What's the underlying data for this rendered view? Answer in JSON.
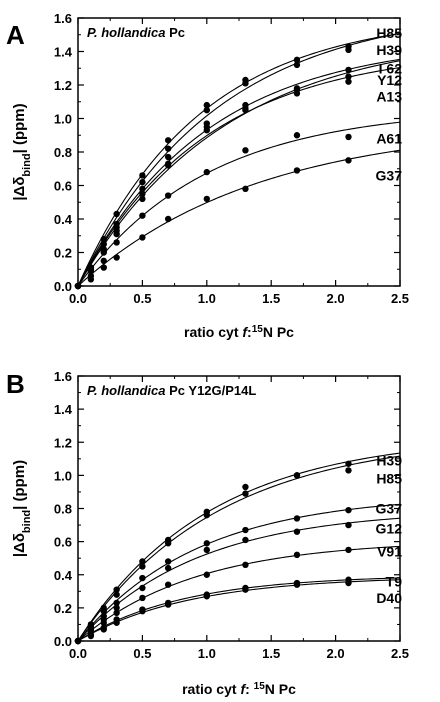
{
  "chart_data": [
    {
      "type": "scatter",
      "panel_letter": "A",
      "title_italic": "P. hollandica",
      "title_rest": " Pc",
      "xlabel_pre": "ratio cyt ",
      "xlabel_f": "f",
      "xlabel_colon": ":",
      "xlabel_sup": "15",
      "xlabel_post": "N Pc",
      "ylabel_pre": "|Δδ",
      "ylabel_sub": "bind",
      "ylabel_post": "| (ppm)",
      "xlim": [
        0.0,
        2.5
      ],
      "ylim": [
        0.0,
        1.6
      ],
      "xticks": [
        "0.0",
        "0.5",
        "1.0",
        "1.5",
        "2.0",
        "2.5"
      ],
      "yticks": [
        "0.0",
        "0.2",
        "0.4",
        "0.6",
        "0.8",
        "1.0",
        "1.2",
        "1.4",
        "1.6"
      ],
      "grid": false,
      "x": [
        0.1,
        0.2,
        0.3,
        0.5,
        0.7,
        1.0,
        1.3,
        1.7,
        2.1
      ],
      "series": [
        {
          "name": "H85",
          "label_y": 1.51,
          "values": [
            0.11,
            0.28,
            0.43,
            0.66,
            0.87,
            1.08,
            1.23,
            1.35,
            1.43
          ]
        },
        {
          "name": "H39",
          "label_y": 1.41,
          "values": [
            0.1,
            0.25,
            0.37,
            0.62,
            0.82,
            1.05,
            1.21,
            1.32,
            1.41
          ]
        },
        {
          "name": "I 62",
          "label_y": 1.3,
          "values": [
            0.1,
            0.22,
            0.35,
            0.58,
            0.77,
            0.97,
            1.08,
            1.18,
            1.29
          ]
        },
        {
          "name": "Y12",
          "label_y": 1.23,
          "values": [
            0.09,
            0.21,
            0.33,
            0.55,
            0.73,
            0.95,
            1.06,
            1.15,
            1.22
          ]
        },
        {
          "name": "A13",
          "label_y": 1.13,
          "values": [
            0.09,
            0.2,
            0.31,
            0.52,
            0.72,
            0.93,
            1.05,
            1.17,
            1.25
          ]
        },
        {
          "name": "A61",
          "label_y": 0.88,
          "values": [
            0.06,
            0.15,
            0.26,
            0.42,
            0.54,
            0.68,
            0.81,
            0.9,
            0.89
          ]
        },
        {
          "name": "G37",
          "label_y": 0.66,
          "values": [
            0.04,
            0.11,
            0.17,
            0.29,
            0.4,
            0.52,
            0.58,
            0.69,
            0.75
          ]
        }
      ]
    },
    {
      "type": "scatter",
      "panel_letter": "B",
      "title_italic": "P. hollandica",
      "title_rest": " Pc Y12G/P14L",
      "xlabel_pre": "ratio cyt ",
      "xlabel_f": "f",
      "xlabel_colon": ": ",
      "xlabel_sup": "15",
      "xlabel_post": "N Pc",
      "ylabel_pre": "|Δδ",
      "ylabel_sub": "bind",
      "ylabel_post": "| (ppm)",
      "xlim": [
        0.0,
        2.5
      ],
      "ylim": [
        0.0,
        1.6
      ],
      "xticks": [
        "0.0",
        "0.5",
        "1.0",
        "1.5",
        "2.0",
        "2.5"
      ],
      "yticks": [
        "0.0",
        "0.2",
        "0.4",
        "0.6",
        "0.8",
        "1.0",
        "1.2",
        "1.4",
        "1.6"
      ],
      "grid": false,
      "x": [
        0.1,
        0.2,
        0.3,
        0.5,
        0.7,
        1.0,
        1.3,
        1.7,
        2.1
      ],
      "series": [
        {
          "name": "H39",
          "label_y": 1.09,
          "values": [
            0.1,
            0.2,
            0.31,
            0.48,
            0.61,
            0.78,
            0.93,
            1.0,
            1.07
          ]
        },
        {
          "name": "H85",
          "label_y": 0.98,
          "values": [
            0.09,
            0.18,
            0.28,
            0.45,
            0.59,
            0.76,
            0.89,
            1.0,
            1.03
          ]
        },
        {
          "name": "G37",
          "label_y": 0.8,
          "values": [
            0.08,
            0.15,
            0.23,
            0.38,
            0.48,
            0.59,
            0.67,
            0.74,
            0.79
          ]
        },
        {
          "name": "G12",
          "label_y": 0.68,
          "values": [
            0.07,
            0.13,
            0.2,
            0.32,
            0.44,
            0.55,
            0.61,
            0.66,
            0.7
          ]
        },
        {
          "name": "V91",
          "label_y": 0.54,
          "values": [
            0.06,
            0.11,
            0.17,
            0.26,
            0.34,
            0.4,
            0.46,
            0.52,
            0.55
          ]
        },
        {
          "name": "T9",
          "label_y": 0.36,
          "values": [
            0.04,
            0.08,
            0.13,
            0.19,
            0.23,
            0.28,
            0.32,
            0.35,
            0.37
          ]
        },
        {
          "name": "D40",
          "label_y": 0.26,
          "values": [
            0.03,
            0.07,
            0.11,
            0.18,
            0.22,
            0.27,
            0.31,
            0.34,
            0.35
          ]
        }
      ]
    }
  ]
}
